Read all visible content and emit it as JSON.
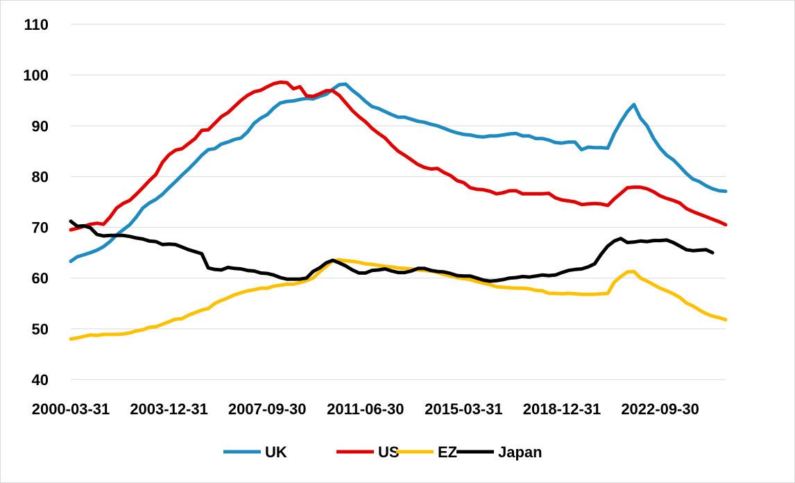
{
  "chart_data": {
    "type": "line",
    "title": "",
    "xlabel": "",
    "ylabel": "",
    "ylim": [
      40,
      110
    ],
    "yticks": [
      40,
      50,
      60,
      70,
      80,
      90,
      100,
      110
    ],
    "grid": "horizontal",
    "legend_position": "bottom",
    "x_tick_labels": [
      "2000-03-31",
      "2003-12-31",
      "2007-09-30",
      "2011-06-30",
      "2015-03-31",
      "2018-12-31",
      "2022-09-30"
    ],
    "x_tick_index": [
      0,
      15,
      30,
      45,
      60,
      75,
      90
    ],
    "series": [
      {
        "name": "UK",
        "color": "#1f8ac0",
        "values": [
          63.3,
          64.2,
          64.6,
          65.0,
          65.5,
          66.2,
          67.2,
          68.5,
          69.5,
          70.5,
          72.0,
          73.8,
          74.8,
          75.5,
          76.5,
          77.8,
          79.0,
          80.3,
          81.5,
          82.8,
          84.2,
          85.3,
          85.5,
          86.4,
          86.8,
          87.3,
          87.6,
          88.8,
          90.5,
          91.5,
          92.2,
          93.5,
          94.5,
          94.8,
          94.9,
          95.2,
          95.4,
          95.3,
          95.8,
          96.2,
          97.2,
          98.1,
          98.2,
          97.0,
          96.0,
          94.8,
          93.8,
          93.4,
          92.8,
          92.2,
          91.7,
          91.7,
          91.3,
          90.9,
          90.7,
          90.3,
          90.0,
          89.5,
          89.0,
          88.6,
          88.3,
          88.2,
          87.9,
          87.8,
          88.0,
          88.0,
          88.2,
          88.4,
          88.5,
          88.0,
          88.0,
          87.5,
          87.5,
          87.2,
          86.7,
          86.6,
          86.8,
          86.8,
          85.3,
          85.8,
          85.7,
          85.7,
          85.6,
          88.5,
          90.8,
          92.8,
          94.2,
          91.5,
          90.0,
          87.5,
          85.6,
          84.2,
          83.3,
          82.0,
          80.6,
          79.5,
          79.0,
          78.2,
          77.6,
          77.2,
          77.1
        ]
      },
      {
        "name": "US",
        "color": "#e00000",
        "values": [
          69.5,
          69.8,
          70.2,
          70.6,
          70.8,
          70.6,
          72.0,
          73.8,
          74.7,
          75.3,
          76.5,
          77.8,
          79.2,
          80.4,
          82.8,
          84.3,
          85.2,
          85.5,
          86.5,
          87.5,
          89.1,
          89.2,
          90.5,
          91.8,
          92.6,
          93.8,
          95.0,
          96.0,
          96.7,
          97.0,
          97.7,
          98.3,
          98.6,
          98.5,
          97.3,
          97.7,
          95.9,
          95.8,
          96.3,
          96.9,
          96.9,
          96.0,
          94.5,
          93.0,
          91.8,
          90.8,
          89.5,
          88.5,
          87.6,
          86.2,
          85.0,
          84.2,
          83.3,
          82.4,
          81.8,
          81.5,
          81.6,
          80.8,
          80.2,
          79.2,
          78.8,
          77.8,
          77.5,
          77.4,
          77.1,
          76.6,
          76.8,
          77.2,
          77.2,
          76.6,
          76.6,
          76.6,
          76.6,
          76.7,
          75.8,
          75.4,
          75.2,
          75.0,
          74.5,
          74.6,
          74.7,
          74.6,
          74.3,
          75.6,
          76.7,
          77.8,
          77.9,
          77.9,
          77.6,
          77.0,
          76.2,
          75.7,
          75.3,
          74.8,
          73.7,
          73.1,
          72.6,
          72.1,
          71.6,
          71.1,
          70.5
        ]
      },
      {
        "name": "EZ",
        "color": "#ffc000",
        "values": [
          48.0,
          48.2,
          48.5,
          48.8,
          48.7,
          48.9,
          48.9,
          48.9,
          49.0,
          49.2,
          49.6,
          49.8,
          50.3,
          50.4,
          50.9,
          51.4,
          51.9,
          52.0,
          52.7,
          53.2,
          53.7,
          54.0,
          55.0,
          55.6,
          56.1,
          56.7,
          57.1,
          57.5,
          57.7,
          58.0,
          58.0,
          58.4,
          58.6,
          58.8,
          58.8,
          59.1,
          59.5,
          60.0,
          61.2,
          62.3,
          63.4,
          63.6,
          63.4,
          63.3,
          63.1,
          62.8,
          62.7,
          62.5,
          62.3,
          62.2,
          62.0,
          61.9,
          61.8,
          61.6,
          61.5,
          61.4,
          61.1,
          60.7,
          60.4,
          60.1,
          59.9,
          59.7,
          59.3,
          59.0,
          58.7,
          58.3,
          58.2,
          58.1,
          58.0,
          58.0,
          57.9,
          57.6,
          57.5,
          57.0,
          57.0,
          56.9,
          57.0,
          56.9,
          56.8,
          56.8,
          56.8,
          56.9,
          57.0,
          59.2,
          60.3,
          61.2,
          61.3,
          60.0,
          59.4,
          58.7,
          58.0,
          57.5,
          56.9,
          56.2,
          55.1,
          54.5,
          53.7,
          53.0,
          52.5,
          52.2,
          51.8
        ]
      },
      {
        "name": "Japan",
        "color": "#000000",
        "values": [
          71.2,
          70.2,
          70.3,
          69.9,
          68.6,
          68.3,
          68.4,
          68.4,
          68.4,
          68.2,
          67.9,
          67.7,
          67.3,
          67.2,
          66.6,
          66.7,
          66.6,
          66.1,
          65.6,
          65.2,
          64.8,
          62.0,
          61.7,
          61.6,
          62.1,
          61.9,
          61.8,
          61.5,
          61.4,
          61.0,
          60.9,
          60.6,
          60.1,
          59.8,
          59.8,
          59.8,
          60.0,
          61.3,
          62.0,
          63.0,
          63.5,
          63.0,
          62.4,
          61.6,
          61.0,
          61.0,
          61.5,
          61.6,
          61.8,
          61.4,
          61.1,
          61.1,
          61.4,
          61.9,
          61.9,
          61.5,
          61.3,
          61.2,
          60.9,
          60.5,
          60.4,
          60.4,
          60.0,
          59.6,
          59.4,
          59.5,
          59.7,
          60.0,
          60.1,
          60.3,
          60.2,
          60.4,
          60.6,
          60.5,
          60.6,
          61.1,
          61.5,
          61.7,
          61.8,
          62.2,
          62.8,
          64.7,
          66.3,
          67.3,
          67.8,
          67.0,
          67.1,
          67.3,
          67.2,
          67.4,
          67.4,
          67.5,
          67.0,
          66.3,
          65.6,
          65.4,
          65.5,
          65.6,
          65.0
        ]
      }
    ]
  }
}
